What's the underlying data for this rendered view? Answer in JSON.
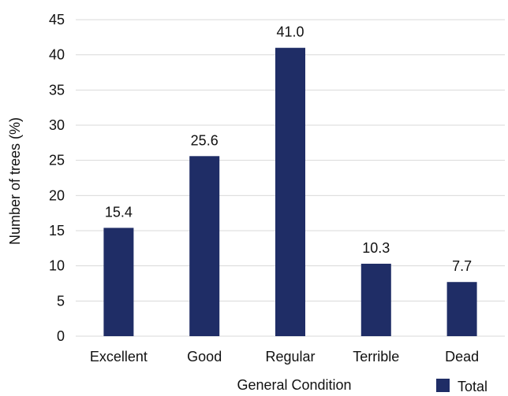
{
  "chart_data": {
    "type": "bar",
    "categories": [
      "Excellent",
      "Good",
      "Regular",
      "Terrible",
      "Dead"
    ],
    "series": [
      {
        "name": "Total",
        "values": [
          15.4,
          25.6,
          41.0,
          10.3,
          7.7
        ]
      }
    ],
    "value_labels": [
      "15.4",
      "25.6",
      "41.0",
      "10.3",
      "7.7"
    ],
    "title": "",
    "xlabel": "General Condition",
    "ylabel": "Number of trees (%)",
    "ylim": [
      0,
      45
    ],
    "yticks": [
      0,
      5,
      10,
      15,
      20,
      25,
      30,
      35,
      40,
      45
    ],
    "grid": true,
    "legend_position": "bottom-right",
    "bar_color": "#1f2d66",
    "grid_color": "#d9d9d9"
  }
}
